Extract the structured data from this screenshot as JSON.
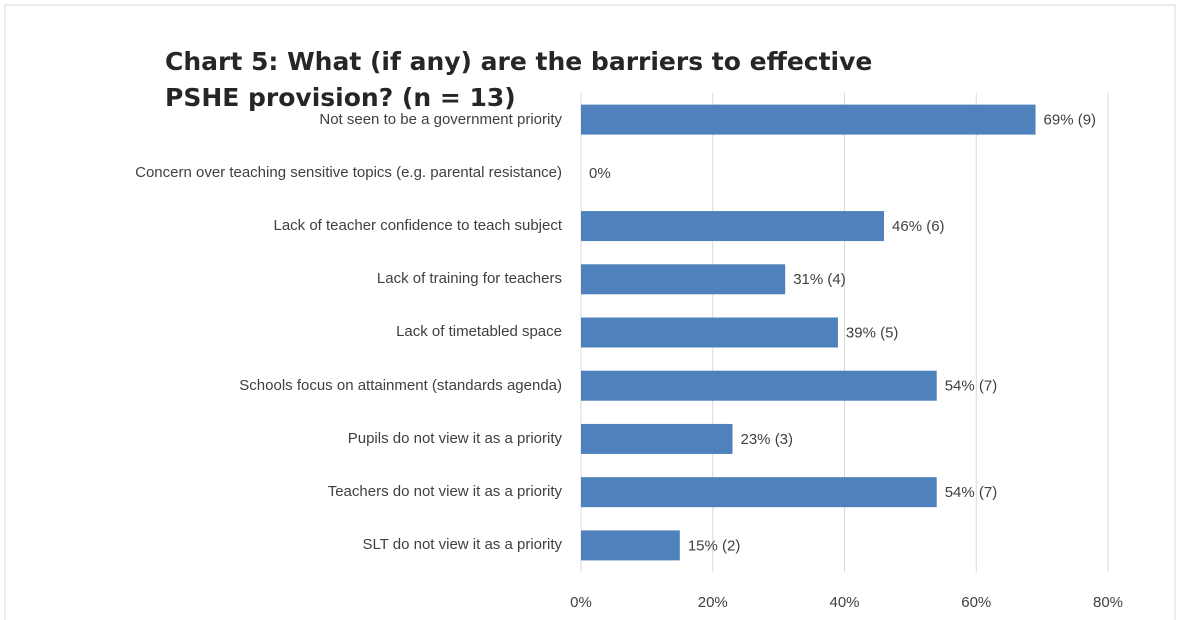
{
  "chart_data": {
    "type": "bar",
    "orientation": "horizontal",
    "title": "Chart 5: What (if any) are the barriers to effective PSHE provision? (n = 13)",
    "categories": [
      "Not seen to be a government priority",
      "Concern over teaching sensitive topics (e.g. parental resistance)",
      "Lack of teacher confidence to teach subject",
      "Lack of training for teachers",
      "Lack of timetabled space",
      "Schools focus on attainment (standards agenda)",
      "Pupils do not view it as a priority",
      "Teachers do not view it as a priority",
      "SLT do not view it as a priority"
    ],
    "values": [
      69,
      0,
      46,
      31,
      39,
      54,
      23,
      54,
      15
    ],
    "value_labels": [
      "69% (9)",
      "0%",
      "46% (6)",
      "31% (4)",
      "39% (5)",
      "54% (7)",
      "23% (3)",
      "54% (7)",
      "15% (2)"
    ],
    "color": "#4f81bd",
    "xlim": [
      0,
      80
    ],
    "xticks": [
      {
        "value": 0,
        "label": "0%"
      },
      {
        "value": 20,
        "label": "20%"
      },
      {
        "value": 40,
        "label": "40%"
      },
      {
        "value": 60,
        "label": "60%"
      },
      {
        "value": 80,
        "label": "80%"
      }
    ],
    "grid": true
  }
}
